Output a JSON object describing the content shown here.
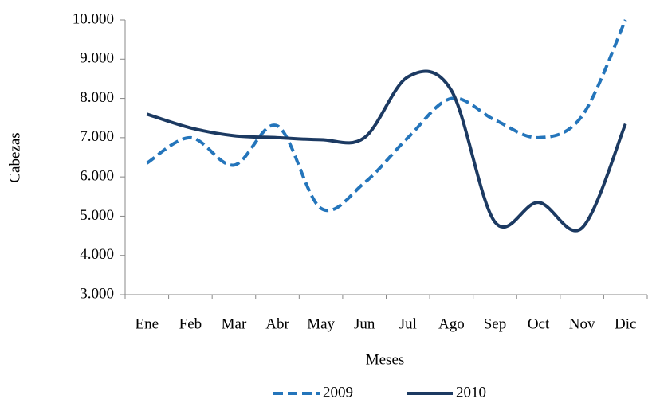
{
  "chart_data": {
    "type": "line",
    "smooth": true,
    "x_label": "Meses",
    "y_label": "Cabezas",
    "categories": [
      "Ene",
      "Feb",
      "Mar",
      "Abr",
      "May",
      "Jun",
      "Jul",
      "Ago",
      "Sep",
      "Oct",
      "Nov",
      "Dic"
    ],
    "series": [
      {
        "name": "2009",
        "color": "#2475bb",
        "line_style": "dashed",
        "values": [
          6350,
          7000,
          6300,
          7300,
          5200,
          5850,
          7000,
          8000,
          7450,
          7000,
          7550,
          10000
        ]
      },
      {
        "name": "2010",
        "color": "#1c3a62",
        "line_style": "solid",
        "values": [
          7600,
          7250,
          7050,
          7000,
          6950,
          7000,
          8550,
          8200,
          4850,
          5350,
          4700,
          7350
        ]
      }
    ],
    "ylim": [
      3000,
      10000
    ],
    "yticks": [
      {
        "value": 3000,
        "label": "3.000"
      },
      {
        "value": 4000,
        "label": "4.000"
      },
      {
        "value": 5000,
        "label": "5.000"
      },
      {
        "value": 6000,
        "label": "6.000"
      },
      {
        "value": 7000,
        "label": "7.000"
      },
      {
        "value": 8000,
        "label": "8.000"
      },
      {
        "value": 9000,
        "label": "9.000"
      },
      {
        "value": 10000,
        "label": "10.000"
      }
    ],
    "grid": false,
    "legend": "bottom"
  }
}
